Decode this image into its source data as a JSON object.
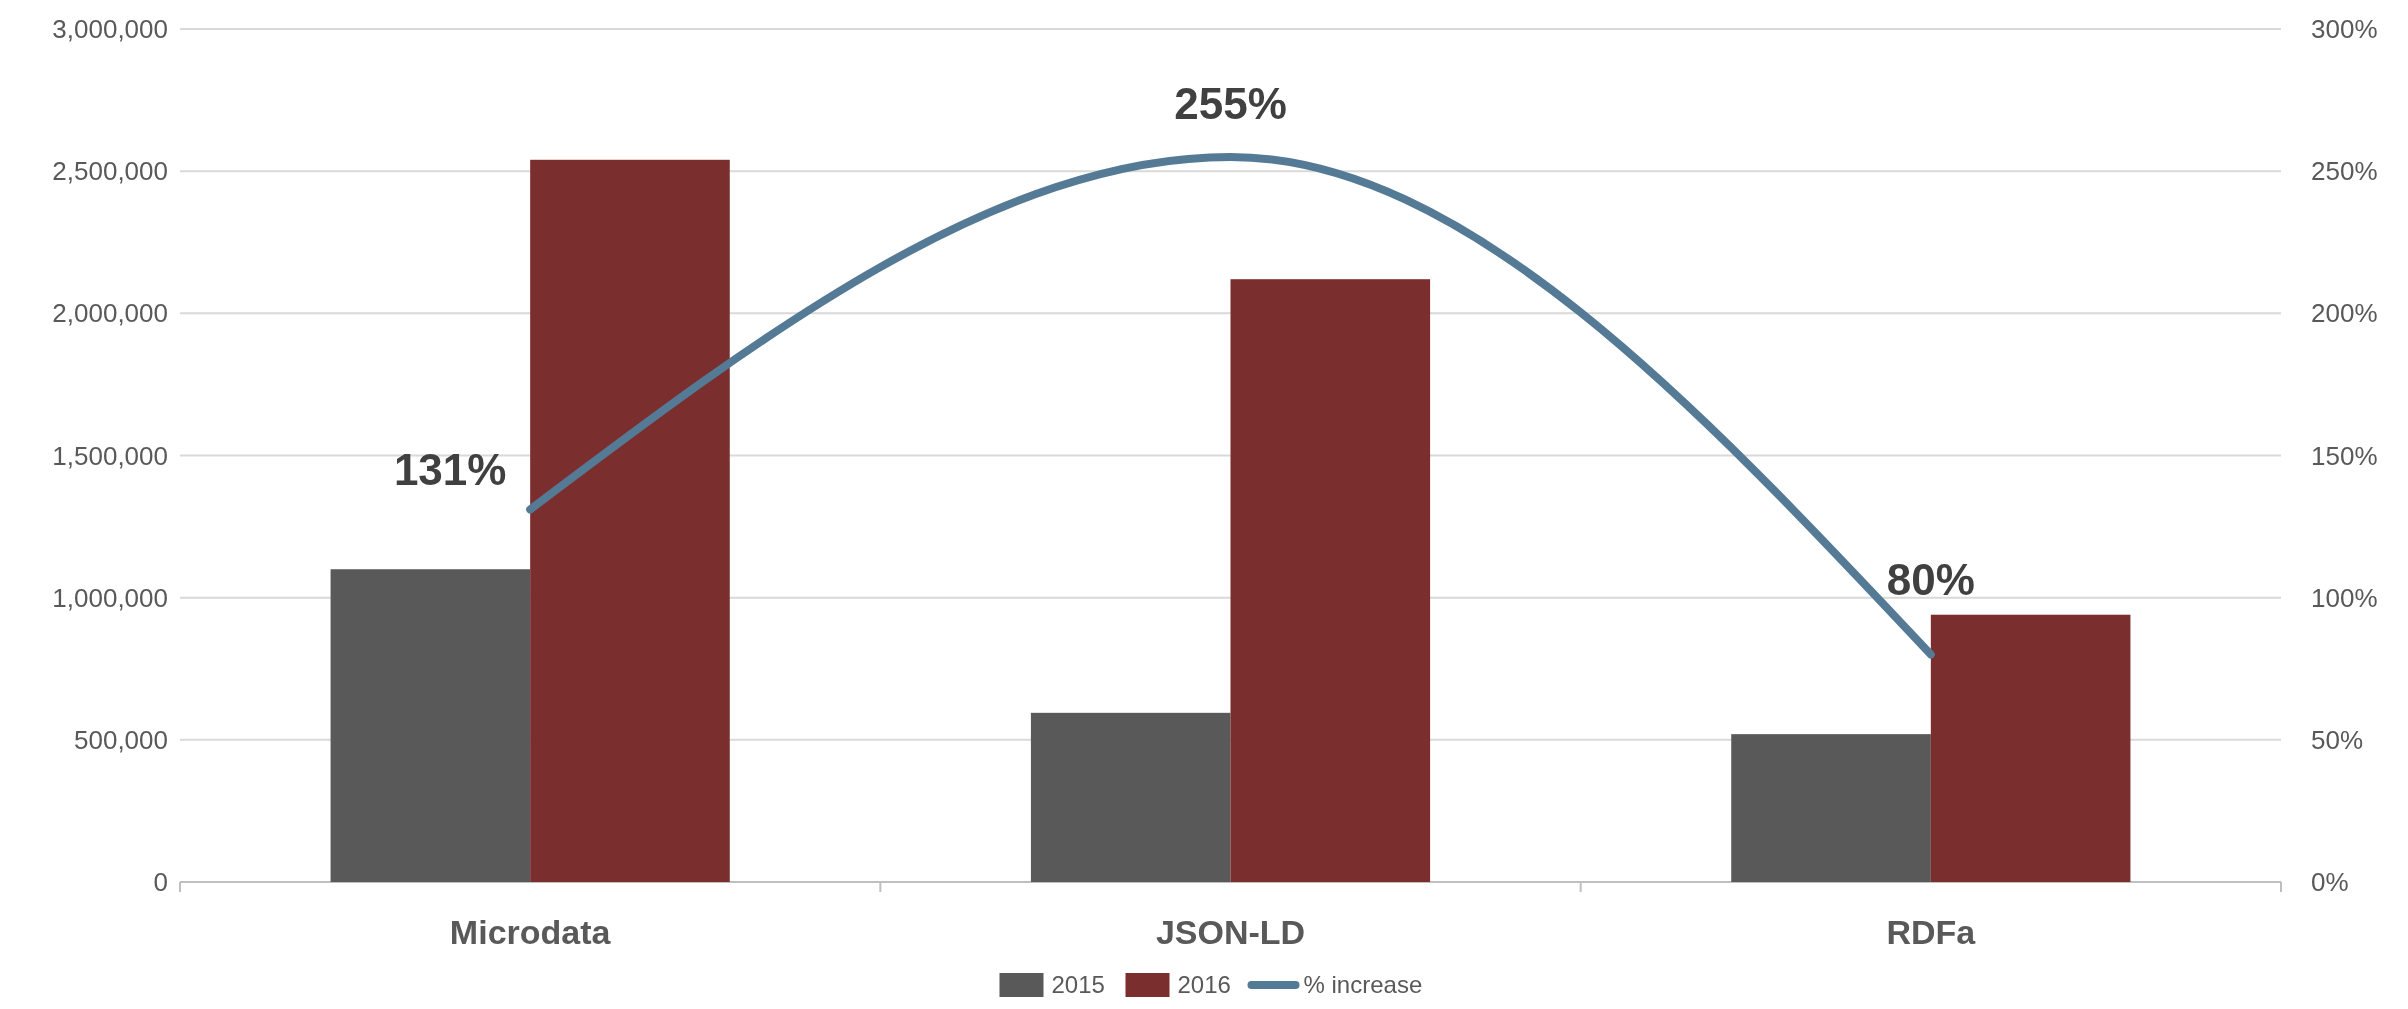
{
  "chart_data": {
    "type": "bar",
    "categories": [
      "Microdata",
      "JSON-LD",
      "RDFa"
    ],
    "series": [
      {
        "name": "2015",
        "color": "#595959",
        "values": [
          1100000,
          595000,
          520000
        ]
      },
      {
        "name": "2016",
        "color": "#7a2e2e",
        "values": [
          2540000,
          2120000,
          940000
        ]
      },
      {
        "name": "% increase",
        "type": "line",
        "axis": "y2",
        "color": "#557a95",
        "values": [
          131,
          255,
          80
        ],
        "value_labels": [
          "131%",
          "255%",
          "80%"
        ]
      }
    ],
    "ylim": [
      0,
      3000000
    ],
    "yticks": [
      {
        "value": 0,
        "label": "0"
      },
      {
        "value": 500000,
        "label": "500,000"
      },
      {
        "value": 1000000,
        "label": "1,000,000"
      },
      {
        "value": 1500000,
        "label": "1,500,000"
      },
      {
        "value": 2000000,
        "label": "2,000,000"
      },
      {
        "value": 2500000,
        "label": "2,500,000"
      },
      {
        "value": 3000000,
        "label": "3,000,000"
      }
    ],
    "y2lim": [
      0,
      300
    ],
    "y2ticks": [
      {
        "value": 0,
        "label": "0%"
      },
      {
        "value": 50,
        "label": "50%"
      },
      {
        "value": 100,
        "label": "100%"
      },
      {
        "value": 150,
        "label": "150%"
      },
      {
        "value": 200,
        "label": "200%"
      },
      {
        "value": 250,
        "label": "250%"
      },
      {
        "value": 300,
        "label": "300%"
      }
    ],
    "grid": "y",
    "legend": "bottom",
    "marker": "none",
    "line_style": "solid"
  }
}
